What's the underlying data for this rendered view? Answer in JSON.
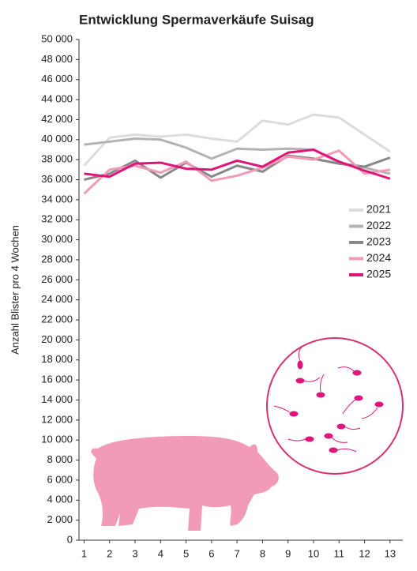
{
  "chart_data": {
    "type": "line",
    "title": "Entwicklung Spermaverkäufe Suisag",
    "y_label": "Anzahl Blister pro 4 Wochen",
    "x": [
      1,
      2,
      3,
      4,
      5,
      6,
      7,
      8,
      9,
      10,
      11,
      12,
      13
    ],
    "xlim": [
      0.8,
      13.5
    ],
    "xticks": [
      1,
      2,
      3,
      4,
      5,
      6,
      7,
      8,
      9,
      10,
      11,
      12,
      13
    ],
    "ylim": [
      0,
      50000
    ],
    "yticks": [
      0,
      {
        "value": 2000,
        "label": "2 000"
      },
      {
        "value": 4000,
        "label": "4 000"
      },
      {
        "value": 6000,
        "label": "6 000"
      },
      {
        "value": 8000,
        "label": "8 000"
      },
      {
        "value": 10000,
        "label": "10 000"
      },
      {
        "value": 12000,
        "label": "12 000"
      },
      {
        "value": 14000,
        "label": "14 000"
      },
      {
        "value": 16000,
        "label": "16 000"
      },
      {
        "value": 18000,
        "label": "18 000"
      },
      {
        "value": 20000,
        "label": "20 000"
      },
      {
        "value": 22000,
        "label": "22 000"
      },
      {
        "value": 24000,
        "label": "24 000"
      },
      {
        "value": 26000,
        "label": "26 000"
      },
      {
        "value": 28000,
        "label": "28 000"
      },
      {
        "value": 30000,
        "label": "30 000"
      },
      {
        "value": 32000,
        "label": "32 000"
      },
      {
        "value": 34000,
        "label": "34 000"
      },
      {
        "value": 36000,
        "label": "36 000"
      },
      {
        "value": 38000,
        "label": "38 000"
      },
      {
        "value": 40000,
        "label": "40 000"
      },
      {
        "value": 42000,
        "label": "42 000"
      },
      {
        "value": 44000,
        "label": "44 000"
      },
      {
        "value": 46000,
        "label": "46 000"
      },
      {
        "value": 48000,
        "label": "48 000"
      },
      {
        "value": 50000,
        "label": "50 000"
      }
    ],
    "grid": false,
    "legend": "right",
    "series": [
      {
        "name": "2021",
        "color": "#dcdcdc",
        "values": [
          37400,
          40200,
          40500,
          40300,
          40500,
          40100,
          39800,
          41900,
          41500,
          42500,
          42200,
          40500,
          38800
        ]
      },
      {
        "name": "2022",
        "color": "#b3b3b3",
        "values": [
          39500,
          39800,
          40100,
          40000,
          39200,
          38100,
          39100,
          39000,
          39100,
          39000,
          37700,
          37200,
          36600
        ]
      },
      {
        "name": "2023",
        "color": "#888888",
        "values": [
          36000,
          36600,
          37900,
          36200,
          37700,
          36300,
          37400,
          36800,
          38400,
          38100,
          37600,
          37300,
          38200
        ]
      },
      {
        "name": "2024",
        "color": "#f29bb8",
        "values": [
          34600,
          37000,
          37400,
          36700,
          37800,
          35900,
          36400,
          37200,
          38300,
          38000,
          38900,
          36600,
          37000
        ]
      },
      {
        "name": "2025",
        "color": "#e0157a",
        "values": [
          36600,
          36300,
          37600,
          37700,
          37100,
          37000,
          37900,
          37300,
          38700,
          39000,
          37800,
          36900,
          36100
        ]
      }
    ]
  }
}
